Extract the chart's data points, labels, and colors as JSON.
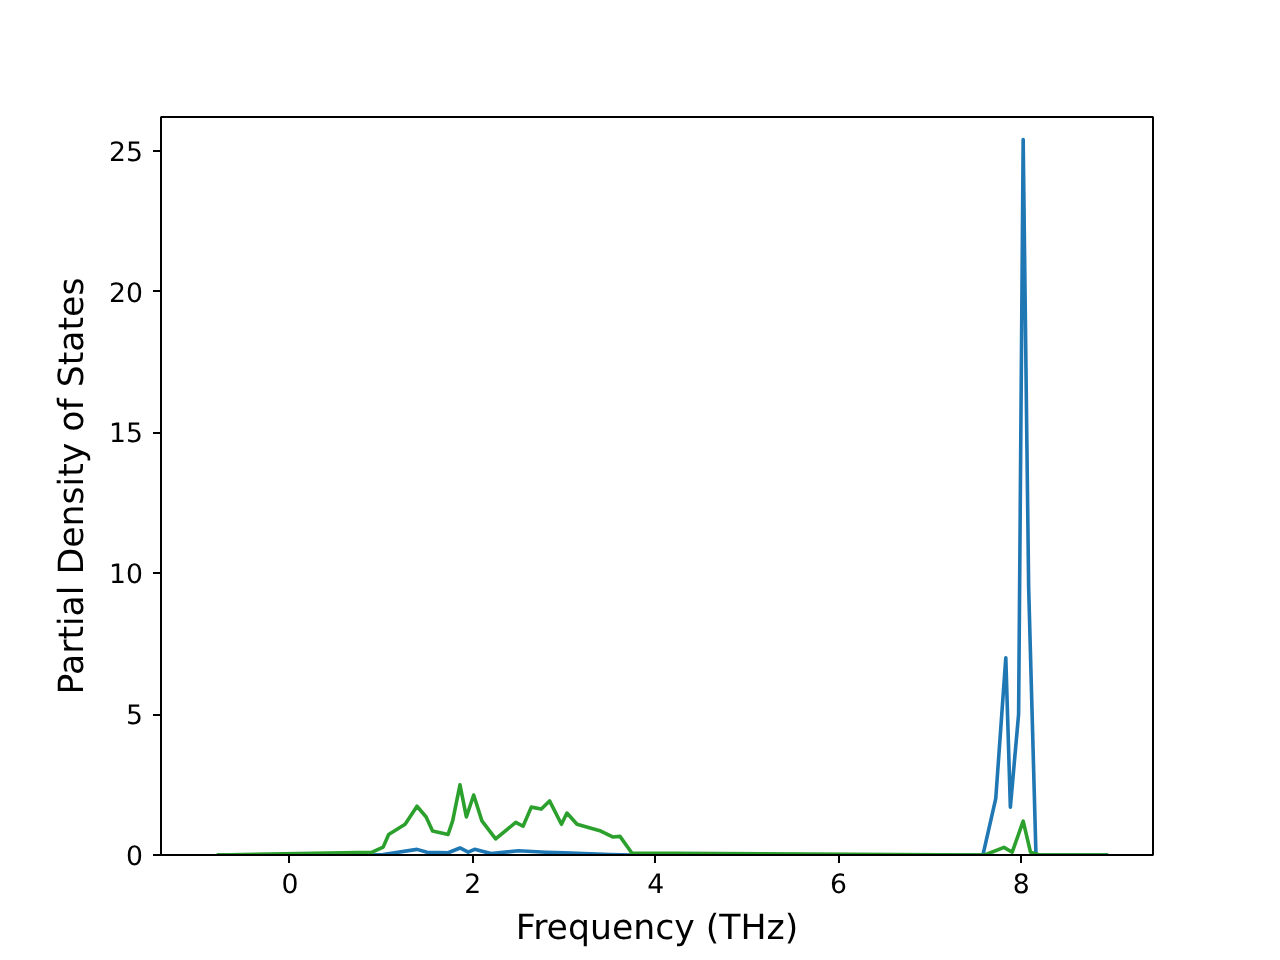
{
  "chart_data": {
    "type": "line",
    "xlabel": "Frequency (THz)",
    "ylabel": "Partial Density of States",
    "xlim": [
      -1.41,
      9.44
    ],
    "ylim": [
      0,
      26.2
    ],
    "xticks": [
      0,
      2,
      4,
      6,
      8
    ],
    "yticks": [
      0,
      5,
      10,
      15,
      20,
      25
    ],
    "grid": false,
    "marker": "none",
    "line_style": "solid",
    "series": [
      {
        "color": "#1f77b4",
        "x": [
          -0.8,
          0.9,
          1.02,
          1.39,
          1.5,
          1.73,
          1.86,
          1.95,
          2.02,
          2.2,
          2.5,
          2.8,
          3.0,
          3.5,
          3.75,
          7.58,
          7.72,
          7.83,
          7.88,
          7.97,
          8.02,
          8.08,
          8.16,
          8.95
        ],
        "values": [
          0,
          0,
          0.02,
          0.2,
          0.1,
          0.08,
          0.25,
          0.1,
          0.2,
          0.05,
          0.15,
          0.1,
          0.08,
          0.02,
          0,
          0,
          2.0,
          7.0,
          1.7,
          5.0,
          25.4,
          9.5,
          0,
          0
        ]
      },
      {
        "color": "#2ca02c",
        "x": [
          -0.8,
          0.9,
          1.02,
          1.08,
          1.26,
          1.39,
          1.49,
          1.56,
          1.73,
          1.78,
          1.86,
          1.93,
          2.01,
          2.1,
          2.25,
          2.47,
          2.55,
          2.64,
          2.75,
          2.84,
          2.97,
          3.03,
          3.14,
          3.4,
          3.53,
          3.61,
          3.74,
          7.6,
          7.81,
          7.9,
          8.02,
          8.1,
          8.2,
          8.95
        ],
        "values": [
          0,
          0.1,
          0.28,
          0.73,
          1.09,
          1.73,
          1.35,
          0.85,
          0.73,
          1.21,
          2.49,
          1.35,
          2.13,
          1.21,
          0.57,
          1.16,
          1.02,
          1.7,
          1.63,
          1.92,
          1.09,
          1.49,
          1.09,
          0.85,
          0.64,
          0.66,
          0.07,
          0,
          0.27,
          0.1,
          1.2,
          0.1,
          0,
          0
        ]
      }
    ]
  }
}
